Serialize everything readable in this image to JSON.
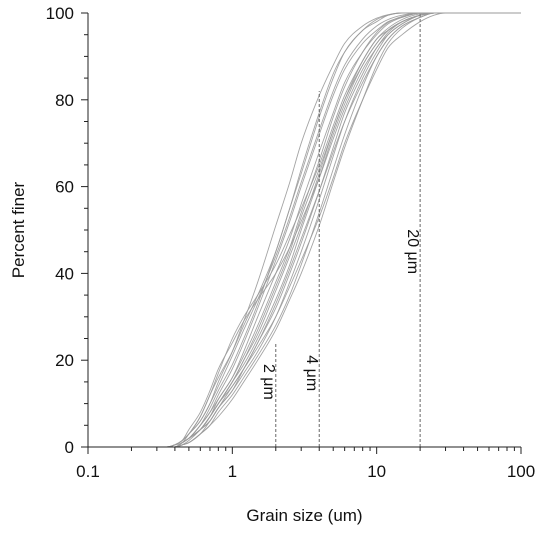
{
  "chart_data": {
    "type": "line",
    "title": "",
    "xlabel": "Grain size (um)",
    "ylabel": "Percent finer",
    "xscale": "log",
    "xlim": [
      0.1,
      100
    ],
    "ylim": [
      0,
      100
    ],
    "x_ticks": [
      0.1,
      1,
      10,
      100
    ],
    "x_tick_labels": [
      "0.1",
      "1",
      "10",
      "100"
    ],
    "y_ticks": [
      0,
      20,
      40,
      60,
      80,
      100
    ],
    "y_tick_labels": [
      "0",
      "20",
      "40",
      "60",
      "80",
      "100"
    ],
    "grid": false,
    "legend": "none",
    "line_color": "#9a9a9a",
    "reference_lines": [
      {
        "x": 2,
        "label": "2 μm",
        "label_y": 15
      },
      {
        "x": 4,
        "label": "4 μm",
        "label_y": 17
      },
      {
        "x": 20,
        "label": "20 μm",
        "label_y": 45
      }
    ],
    "x": [
      0.3,
      0.35,
      0.4,
      0.45,
      0.5,
      0.6,
      0.7,
      0.8,
      1,
      1.2,
      1.5,
      2,
      2.5,
      3,
      4,
      5,
      6,
      8,
      10,
      12,
      15,
      20,
      25,
      30,
      40,
      60,
      100
    ],
    "series": [
      {
        "values": [
          0,
          0,
          0,
          1,
          2,
          4,
          7,
          10,
          15,
          20,
          27,
          37,
          45,
          53,
          64,
          73,
          80,
          88,
          93,
          96,
          98,
          99.5,
          100,
          100,
          100,
          100,
          100
        ]
      },
      {
        "values": [
          0,
          0,
          0,
          1,
          2,
          5,
          8,
          12,
          18,
          24,
          32,
          43,
          52,
          60,
          72,
          81,
          87,
          93,
          96,
          98,
          99,
          100,
          100,
          100,
          100,
          100,
          100
        ]
      },
      {
        "values": [
          0,
          0,
          0,
          0.5,
          1,
          3,
          6,
          9,
          13,
          18,
          24,
          33,
          41,
          48,
          59,
          68,
          75,
          84,
          90,
          94,
          97,
          99,
          100,
          100,
          100,
          100,
          100
        ]
      },
      {
        "values": [
          0,
          0,
          0.5,
          1,
          3,
          7,
          12,
          17,
          25,
          30,
          35,
          42,
          49,
          55,
          65,
          74,
          81,
          89,
          94,
          96,
          98,
          99.5,
          100,
          100,
          100,
          100,
          100
        ]
      },
      {
        "values": [
          0,
          0,
          0,
          1,
          2,
          4,
          6,
          9,
          14,
          18,
          23,
          30,
          37,
          43,
          53,
          62,
          70,
          80,
          87,
          92,
          95,
          98,
          99.5,
          100,
          100,
          100,
          100
        ]
      },
      {
        "values": [
          0,
          0,
          0.5,
          1.5,
          3,
          6,
          10,
          14,
          21,
          27,
          34,
          44,
          53,
          61,
          73,
          82,
          88,
          94,
          97,
          98.5,
          99.5,
          100,
          100,
          100,
          100,
          100,
          100
        ]
      },
      {
        "values": [
          0,
          0,
          0,
          0.5,
          1,
          3,
          5,
          8,
          12,
          16,
          21,
          28,
          35,
          42,
          54,
          64,
          72,
          83,
          90,
          94,
          97,
          99,
          100,
          100,
          100,
          100,
          100
        ]
      },
      {
        "values": [
          0,
          0,
          0,
          1,
          2,
          4,
          7,
          11,
          16,
          22,
          30,
          40,
          48,
          56,
          68,
          77,
          84,
          91,
          95,
          97.5,
          99,
          100,
          100,
          100,
          100,
          100,
          100
        ]
      },
      {
        "values": [
          0,
          0,
          0.5,
          1.5,
          3,
          7,
          12,
          16,
          22,
          28,
          35,
          45,
          55,
          63,
          76,
          85,
          91,
          96,
          98.5,
          99.5,
          100,
          100,
          100,
          100,
          100,
          100,
          100
        ]
      },
      {
        "values": [
          0,
          0,
          0,
          1,
          2,
          5,
          9,
          13,
          19,
          25,
          33,
          45,
          55,
          64,
          77,
          86,
          91,
          96,
          98,
          99.5,
          100,
          100,
          100,
          100,
          100,
          100,
          100
        ]
      },
      {
        "values": [
          0,
          0,
          0,
          0.5,
          1.5,
          4,
          7,
          10,
          15,
          19,
          25,
          34,
          42,
          50,
          62,
          72,
          79,
          88,
          93,
          96,
          98,
          99.5,
          100,
          100,
          100,
          100,
          100
        ]
      },
      {
        "values": [
          0,
          0,
          0,
          1,
          2,
          4,
          7,
          10,
          14,
          18,
          24,
          32,
          40,
          47,
          59,
          69,
          77,
          86,
          92,
          95,
          97.5,
          99.5,
          100,
          100,
          100,
          100,
          100
        ]
      },
      {
        "values": [
          0,
          0,
          0.5,
          1.5,
          4,
          8,
          13,
          18,
          24,
          29,
          34,
          40,
          46,
          52,
          62,
          71,
          78,
          87,
          92,
          95.5,
          98,
          99.5,
          100,
          100,
          100,
          100,
          100
        ]
      },
      {
        "values": [
          0,
          0,
          0,
          1,
          2,
          4,
          7,
          10,
          15,
          20,
          26,
          36,
          44,
          51,
          63,
          73,
          80,
          89,
          94,
          96.5,
          98.5,
          99.8,
          100,
          100,
          100,
          100,
          100
        ]
      },
      {
        "values": [
          0,
          0,
          0,
          0.5,
          1,
          3,
          5,
          7,
          11,
          15,
          20,
          27,
          34,
          40,
          51,
          61,
          69,
          80,
          88,
          93,
          96.5,
          99,
          100,
          100,
          100,
          100,
          100
        ]
      },
      {
        "values": [
          0,
          0,
          0.5,
          1.5,
          3,
          6,
          10,
          15,
          22,
          29,
          38,
          51,
          61,
          70,
          81,
          88,
          93,
          97,
          98.8,
          99.6,
          100,
          100,
          100,
          100,
          100,
          100,
          100
        ]
      },
      {
        "values": [
          0,
          0,
          0,
          1,
          2,
          5,
          8,
          11,
          16,
          21,
          28,
          38,
          46,
          54,
          66,
          76,
          83,
          91,
          95.5,
          97.8,
          99.2,
          100,
          100,
          100,
          100,
          100,
          100
        ]
      },
      {
        "values": [
          0,
          0,
          0,
          1,
          2,
          4,
          6,
          9,
          13,
          17,
          22,
          30,
          38,
          45,
          57,
          67,
          75,
          85,
          91,
          95,
          97.5,
          99.5,
          100,
          100,
          100,
          100,
          100
        ]
      }
    ]
  }
}
